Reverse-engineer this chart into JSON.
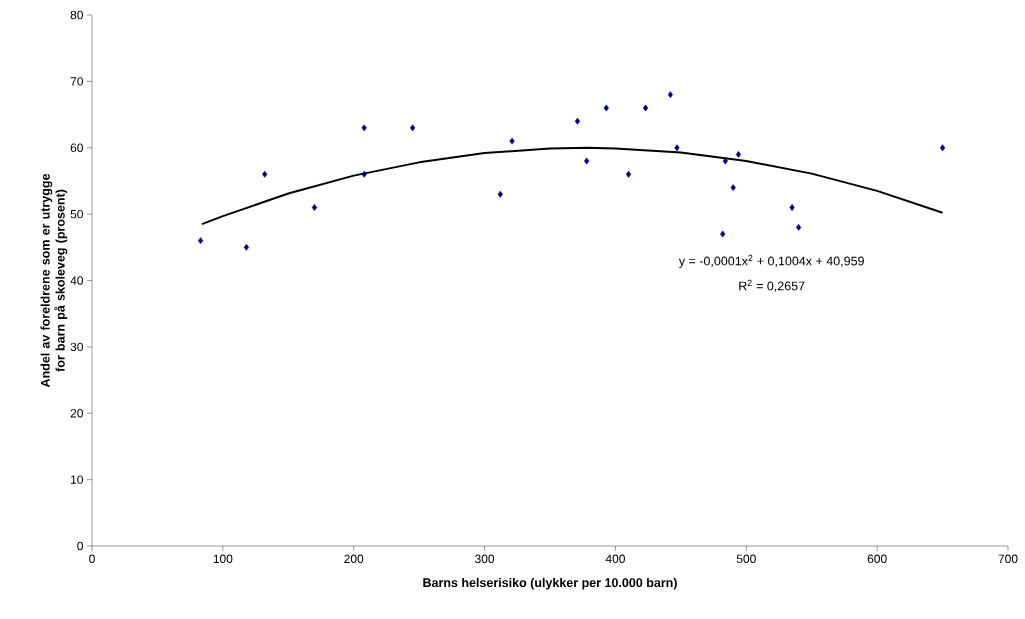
{
  "chart_data": {
    "type": "scatter",
    "xlabel": "Barns helserisiko (ulykker per 10.000 barn)",
    "ylabel": "Andel av foreldrene som er utrygge for barn på skoleveg (prosent)",
    "xlim": [
      0,
      700
    ],
    "xticks": [
      0,
      100,
      200,
      300,
      400,
      500,
      600,
      700
    ],
    "ylim": [
      0,
      80
    ],
    "yticks": [
      0,
      10,
      20,
      30,
      40,
      50,
      60,
      70,
      80
    ],
    "grid": false,
    "marker": "diamond",
    "x": [
      83,
      118,
      132,
      170,
      208,
      208,
      245,
      312,
      321,
      371,
      378,
      393,
      410,
      423,
      442,
      447,
      482,
      484,
      490,
      494,
      535,
      540,
      650
    ],
    "annotations": [
      "y = -0,0001x$^{2}$ + 0,1004x + 40,959",
      "R$^{2}$ = 0,2657"
    ],
    "series": [
      {
        "color": "#000080",
        "values": [
          46,
          45,
          56,
          51,
          56,
          63,
          63,
          53,
          61,
          64,
          58,
          66,
          56,
          66,
          68,
          60,
          47,
          58,
          54,
          59,
          51,
          48,
          60
        ]
      },
      {
        "type": "line",
        "color": "#000000",
        "marker": "none",
        "line_style": "solid",
        "x": [
          84,
          100,
          150,
          200,
          250,
          300,
          350,
          378,
          400,
          450,
          500,
          550,
          600,
          650
        ],
        "values": [
          48.5,
          49.7,
          53.1,
          55.8,
          57.8,
          59.2,
          59.9,
          60,
          59.9,
          59.3,
          58.0,
          56.1,
          53.5,
          50.2
        ]
      }
    ]
  }
}
